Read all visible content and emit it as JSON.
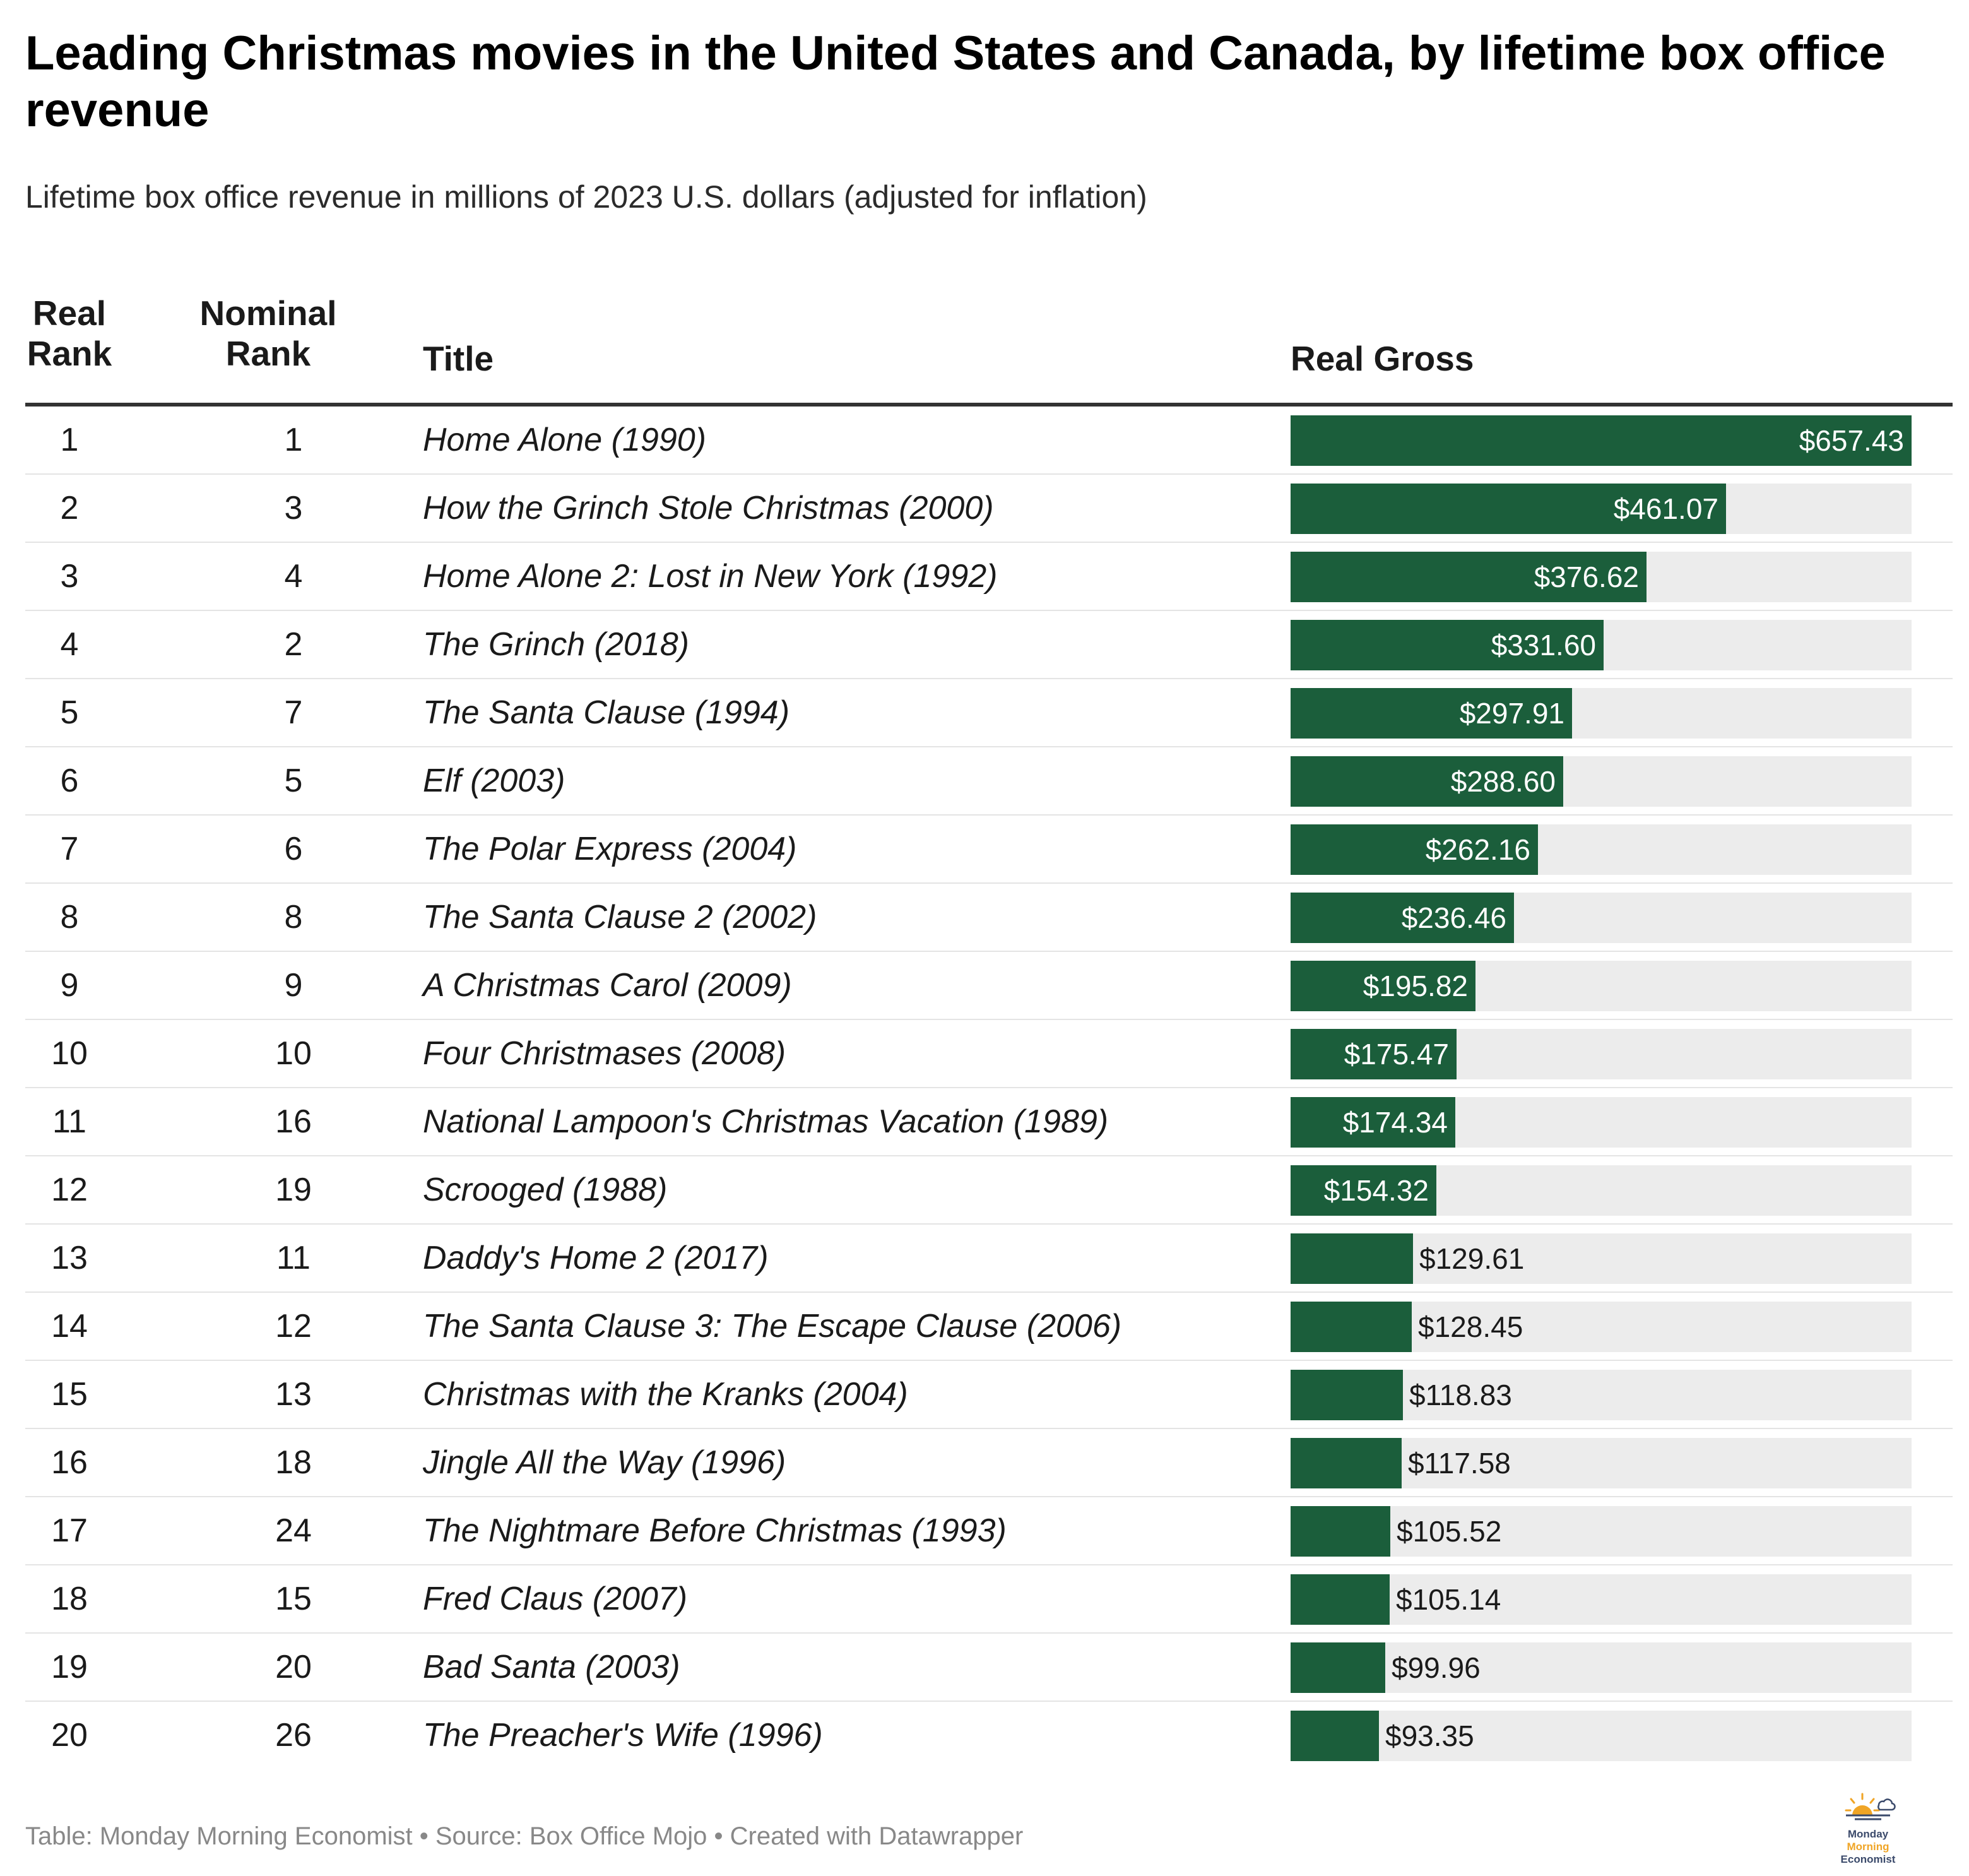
{
  "title": "Leading Christmas movies in the United States and Canada, by lifetime box office revenue",
  "subtitle": "Lifetime box office revenue in millions of 2023 U.S. dollars (adjusted for inflation)",
  "headers": {
    "real_rank": [
      "Real",
      "Rank"
    ],
    "nominal_rank": [
      "Nominal",
      "Rank"
    ],
    "title": "Title",
    "real_gross": "Real Gross"
  },
  "footer": "Table: Monday Morning Economist • Source: Box Office Mojo • Created with Datawrapper",
  "logo": {
    "line1": "Monday",
    "line2": "Morning",
    "line3": "Economist"
  },
  "colors": {
    "bar": "#1b5e3b",
    "track": "#ececec",
    "rule": "#333333"
  },
  "chart_data": {
    "type": "table",
    "max_value": 657.43,
    "rows": [
      {
        "real_rank": "1",
        "nominal_rank": "1",
        "title": "Home Alone (1990)",
        "value": 657.43,
        "label": "$657.43"
      },
      {
        "real_rank": "2",
        "nominal_rank": "3",
        "title": "How the Grinch Stole Christmas (2000)",
        "value": 461.07,
        "label": "$461.07"
      },
      {
        "real_rank": "3",
        "nominal_rank": "4",
        "title": "Home Alone 2: Lost in New York (1992)",
        "value": 376.62,
        "label": "$376.62"
      },
      {
        "real_rank": "4",
        "nominal_rank": "2",
        "title": "The Grinch (2018)",
        "value": 331.6,
        "label": "$331.60"
      },
      {
        "real_rank": "5",
        "nominal_rank": "7",
        "title": "The Santa Clause (1994)",
        "value": 297.91,
        "label": "$297.91"
      },
      {
        "real_rank": "6",
        "nominal_rank": "5",
        "title": "Elf (2003)",
        "value": 288.6,
        "label": "$288.60"
      },
      {
        "real_rank": "7",
        "nominal_rank": "6",
        "title": "The Polar Express (2004)",
        "value": 262.16,
        "label": "$262.16"
      },
      {
        "real_rank": "8",
        "nominal_rank": "8",
        "title": "The Santa Clause 2 (2002)",
        "value": 236.46,
        "label": "$236.46"
      },
      {
        "real_rank": "9",
        "nominal_rank": "9",
        "title": "A Christmas Carol (2009)",
        "value": 195.82,
        "label": "$195.82"
      },
      {
        "real_rank": "10",
        "nominal_rank": "10",
        "title": "Four Christmases (2008)",
        "value": 175.47,
        "label": "$175.47"
      },
      {
        "real_rank": "11",
        "nominal_rank": "16",
        "title": "National Lampoon's Christmas Vacation (1989)",
        "value": 174.34,
        "label": "$174.34"
      },
      {
        "real_rank": "12",
        "nominal_rank": "19",
        "title": "Scrooged (1988)",
        "value": 154.32,
        "label": "$154.32"
      },
      {
        "real_rank": "13",
        "nominal_rank": "11",
        "title": "Daddy's Home 2 (2017)",
        "value": 129.61,
        "label": "$129.61"
      },
      {
        "real_rank": "14",
        "nominal_rank": "12",
        "title": "The Santa Clause 3: The Escape Clause (2006)",
        "value": 128.45,
        "label": "$128.45"
      },
      {
        "real_rank": "15",
        "nominal_rank": "13",
        "title": "Christmas with the Kranks (2004)",
        "value": 118.83,
        "label": "$118.83"
      },
      {
        "real_rank": "16",
        "nominal_rank": "18",
        "title": "Jingle All the Way (1996)",
        "value": 117.58,
        "label": "$117.58"
      },
      {
        "real_rank": "17",
        "nominal_rank": "24",
        "title": "The Nightmare Before Christmas (1993)",
        "value": 105.52,
        "label": "$105.52"
      },
      {
        "real_rank": "18",
        "nominal_rank": "15",
        "title": "Fred Claus (2007)",
        "value": 105.14,
        "label": "$105.14"
      },
      {
        "real_rank": "19",
        "nominal_rank": "20",
        "title": "Bad Santa (2003)",
        "value": 99.96,
        "label": "$99.96"
      },
      {
        "real_rank": "20",
        "nominal_rank": "26",
        "title": "The Preacher's Wife (1996)",
        "value": 93.35,
        "label": "$93.35"
      }
    ]
  }
}
